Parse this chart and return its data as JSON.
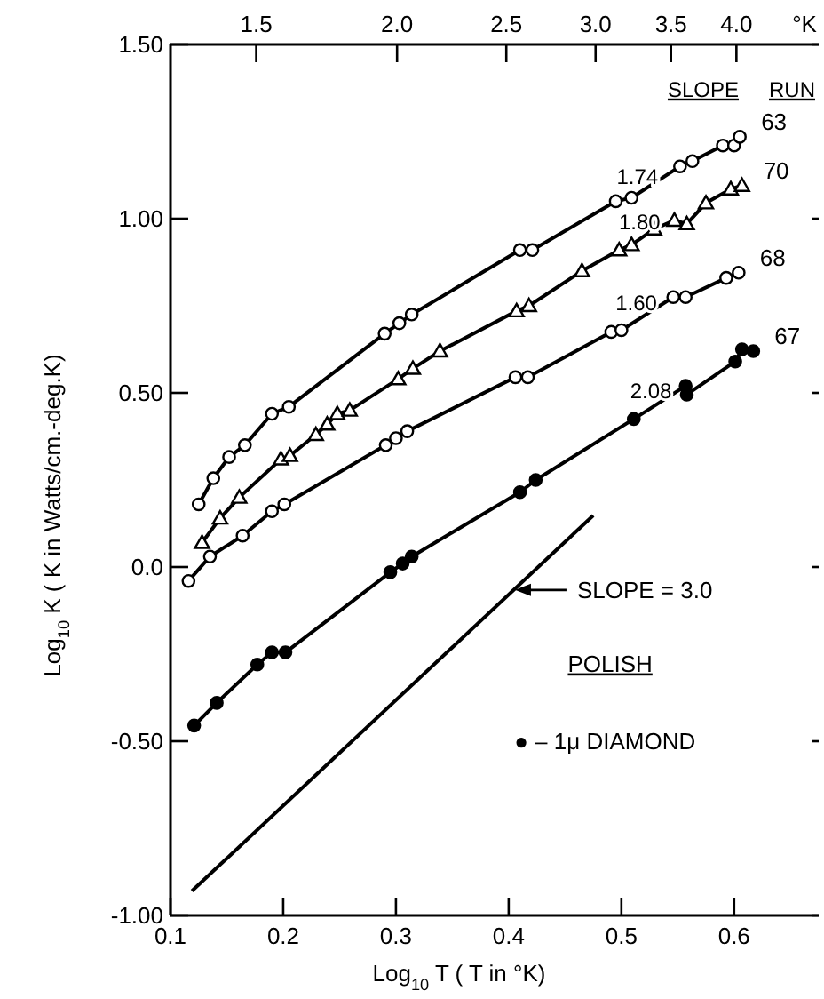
{
  "chart_data": {
    "type": "line",
    "xlabel": "Log$_{10}$ T ( T in °K)",
    "ylabel": "Log$_{10}$ K ( K in Watts/cm.-deg.K)",
    "x2label": "°K",
    "legend_title": "POLISH",
    "grid": false,
    "line_style": "solid",
    "log": "x2",
    "xlim": [
      0.1,
      0.675
    ],
    "xticks": [
      {
        "value": 0.1,
        "label": "0.1"
      },
      {
        "value": 0.2,
        "label": "0.2"
      },
      {
        "value": 0.3,
        "label": "0.3"
      },
      {
        "value": 0.4,
        "label": "0.4"
      },
      {
        "value": 0.5,
        "label": "0.5"
      },
      {
        "value": 0.6,
        "label": "0.6"
      }
    ],
    "x2lim": [
      1.259,
      4.732
    ],
    "x2ticks": [
      1.5,
      {
        "value": 2,
        "label": "2.0"
      },
      2.5,
      {
        "value": 3,
        "label": "3.0"
      },
      3.5,
      {
        "value": 4,
        "label": "4.0"
      }
    ],
    "ylim": [
      -1.0,
      1.5
    ],
    "yticks": [
      {
        "value": 1.5,
        "label": "1.50"
      },
      {
        "value": 1.0,
        "label": "1.00"
      },
      {
        "value": 0.5,
        "label": "0.50"
      },
      {
        "value": 0,
        "label": "0.0"
      },
      {
        "value": -0.5,
        "label": "-0.50"
      },
      {
        "value": -1.0,
        "label": "-1.00"
      }
    ],
    "series": [
      {
        "name": "63",
        "color": "#000000",
        "marker": "circle",
        "x": [
          0.125,
          0.138,
          0.152,
          0.166,
          0.19,
          0.205,
          0.29,
          0.303,
          0.314,
          0.41,
          0.421,
          0.495,
          0.509,
          0.552,
          0.563,
          0.59,
          0.6,
          0.605
        ],
        "values": [
          0.18,
          0.255,
          0.316,
          0.35,
          0.44,
          0.46,
          0.67,
          0.7,
          0.725,
          0.91,
          0.91,
          1.05,
          1.06,
          1.15,
          1.165,
          1.21,
          1.21,
          1.235
        ]
      },
      {
        "name": "70",
        "color": "#000000",
        "marker": "triangle",
        "x": [
          0.128,
          0.144,
          0.161,
          0.198,
          0.206,
          0.229,
          0.239,
          0.248,
          0.259,
          0.302,
          0.315,
          0.339,
          0.407,
          0.418,
          0.465,
          0.498,
          0.509,
          0.529,
          0.547,
          0.558,
          0.575,
          0.597,
          0.607
        ],
        "values": [
          0.07,
          0.14,
          0.2,
          0.31,
          0.32,
          0.38,
          0.41,
          0.44,
          0.45,
          0.54,
          0.57,
          0.62,
          0.735,
          0.75,
          0.85,
          0.91,
          0.925,
          0.97,
          0.995,
          0.985,
          1.045,
          1.085,
          1.095
        ]
      },
      {
        "name": "68",
        "color": "#000000",
        "marker": "circle",
        "x": [
          0.116,
          0.135,
          0.164,
          0.19,
          0.201,
          0.291,
          0.3,
          0.31,
          0.406,
          0.417,
          0.491,
          0.5,
          0.546,
          0.557,
          0.593,
          0.604
        ],
        "values": [
          -0.04,
          0.03,
          0.09,
          0.16,
          0.18,
          0.35,
          0.37,
          0.39,
          0.545,
          0.545,
          0.675,
          0.68,
          0.775,
          0.775,
          0.83,
          0.845
        ]
      },
      {
        "name": "67",
        "color": "#000000",
        "marker": "filled-circle",
        "x": [
          0.121,
          0.141,
          0.177,
          0.19,
          0.202,
          0.295,
          0.306,
          0.314,
          0.41,
          0.424,
          0.511,
          0.557,
          0.558,
          0.601,
          0.607,
          0.617
        ],
        "values": [
          -0.455,
          -0.39,
          -0.28,
          -0.245,
          -0.245,
          -0.015,
          0.01,
          0.03,
          0.215,
          0.25,
          0.425,
          0.52,
          0.495,
          0.59,
          0.625,
          0.62
        ]
      },
      {
        "color": "#000000",
        "marker": "none",
        "x": [
          0.119,
          0.475
        ],
        "values": [
          -0.93,
          0.148
        ]
      }
    ],
    "annotations": [
      "1.74",
      "1.80",
      "1.60",
      "2.08",
      {
        "text": "SLOPE = 3.0",
        "x": 0.404,
        "y": -0.066
      },
      "SLOPE",
      "RUN",
      "● – 1μ DIAMOND"
    ]
  }
}
